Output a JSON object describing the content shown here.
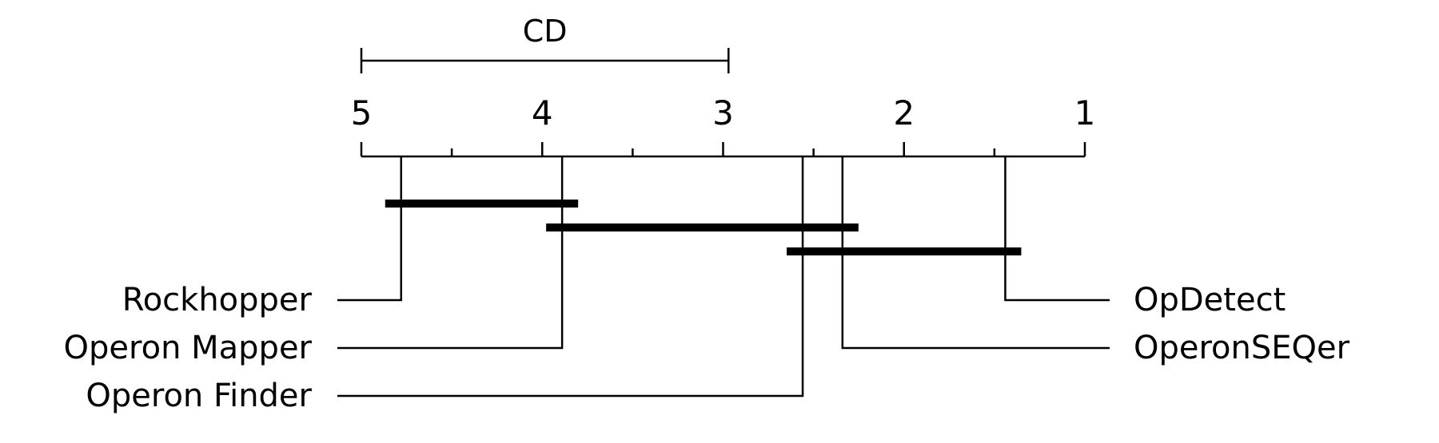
{
  "chart_data": {
    "type": "critical-difference-diagram",
    "title": "",
    "cd_label": "CD",
    "axis": {
      "min": 1,
      "max": 5,
      "reversed": true,
      "major_ticks": [
        5,
        4,
        3,
        2,
        1
      ],
      "tick_labels": [
        "5",
        "4",
        "3",
        "2",
        "1"
      ],
      "minor_ticks": [
        4.5,
        3.5,
        2.5,
        1.5
      ]
    },
    "critical_difference": {
      "from": 5.0,
      "to": 2.97
    },
    "methods": [
      {
        "name": "Rockhopper",
        "avg_rank": 4.78,
        "side": "left"
      },
      {
        "name": "Operon Mapper",
        "avg_rank": 3.89,
        "side": "left"
      },
      {
        "name": "Operon Finder",
        "avg_rank": 2.56,
        "side": "left"
      },
      {
        "name": "OpDetect",
        "avg_rank": 1.44,
        "side": "right"
      },
      {
        "name": "OperonSEQer",
        "avg_rank": 2.34,
        "side": "right"
      }
    ],
    "cliques": [
      {
        "from": 4.78,
        "to": 3.89
      },
      {
        "from": 3.89,
        "to": 2.34
      },
      {
        "from": 2.56,
        "to": 1.44
      }
    ],
    "colors": {
      "line": "#000000",
      "background": "#ffffff"
    }
  }
}
